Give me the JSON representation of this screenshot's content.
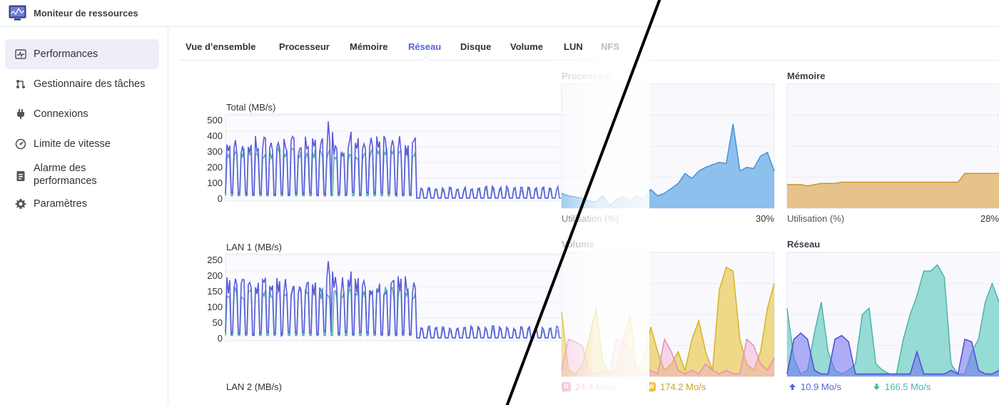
{
  "app": {
    "title": "Moniteur de ressources"
  },
  "sidebar": {
    "items": [
      {
        "label": "Performances",
        "icon": "pulse-chart-icon",
        "active": true
      },
      {
        "label": "Gestionnaire des tâches",
        "icon": "task-flow-icon",
        "active": false
      },
      {
        "label": "Connexions",
        "icon": "plug-icon",
        "active": false
      },
      {
        "label": "Limite de vitesse",
        "icon": "speedometer-icon",
        "active": false
      },
      {
        "label": "Alarme des performances",
        "icon": "clipboard-icon",
        "active": false
      },
      {
        "label": "Paramètres",
        "icon": "gear-icon",
        "active": false
      }
    ]
  },
  "tabs": [
    {
      "label": "Vue d’ensemble"
    },
    {
      "label": "Processeur"
    },
    {
      "label": "Mémoire"
    },
    {
      "label": "Réseau",
      "active": true
    },
    {
      "label": "Disque"
    },
    {
      "label": "Volume"
    },
    {
      "label": "LUN"
    },
    {
      "label": "NFS"
    }
  ],
  "colors": {
    "accent": "#5764d9",
    "series_upload": "#5b5bdc",
    "series_download": "#4fb3a9",
    "cpu": "#5fa8e6",
    "memory": "#e2b46e",
    "volume_read": "#f2a7c8",
    "volume_write": "#e6c84a",
    "network_up": "#6f6ff0",
    "network_down": "#6ecfc4"
  },
  "network_charts": [
    {
      "label": "Total (MB/s)",
      "yticks": [
        "500",
        "400",
        "300",
        "200",
        "100",
        "0"
      ]
    },
    {
      "label": "LAN 1 (MB/s)",
      "yticks": [
        "250",
        "200",
        "150",
        "100",
        "50",
        "0"
      ]
    },
    {
      "label": "LAN 2 (MB/s)"
    }
  ],
  "overview": {
    "processeur": {
      "title": "Processeur",
      "foot_label": "Utilisation  (%)",
      "value": "30%"
    },
    "memoire": {
      "title": "Mémoire",
      "foot_label": "Utilisation  (%)",
      "value": "28%"
    },
    "volume": {
      "title": "Volume",
      "read_badge": "R",
      "read": "24.4 Mo/s",
      "write_badge": "W",
      "write": "174.2 Mo/s"
    },
    "reseau": {
      "title": "Réseau",
      "upload": "10.9 Mo/s",
      "download": "166.5 Mo/s"
    }
  }
}
